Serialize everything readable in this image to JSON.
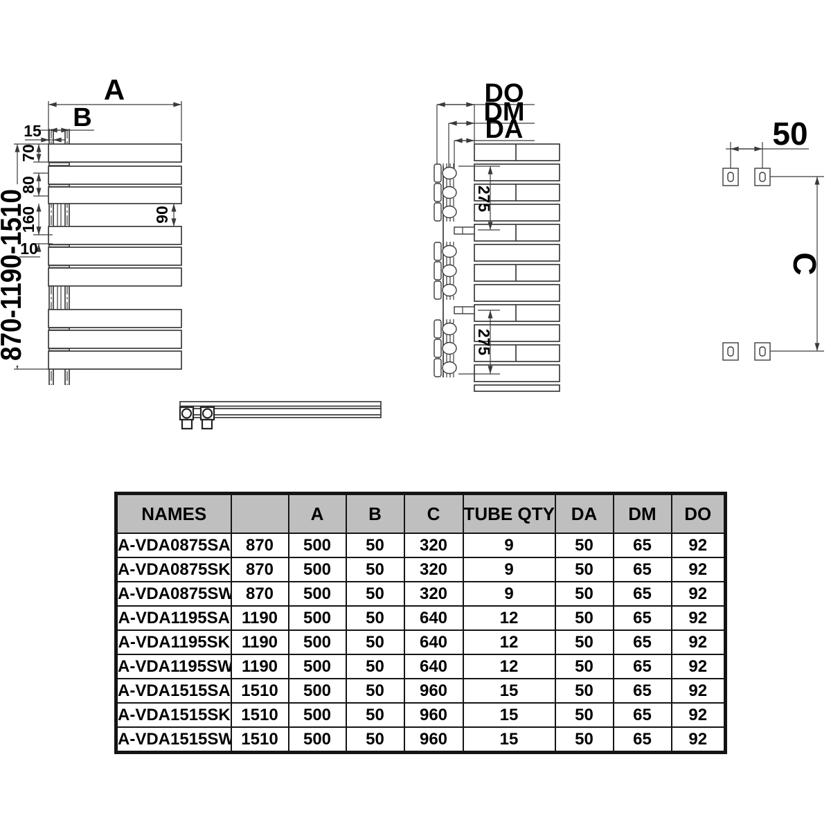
{
  "colors": {
    "background": "#ffffff",
    "line": "#3a3a3a",
    "text": "#000000",
    "table_header_bg": "#bfbfbf",
    "table_border": "#141414"
  },
  "front_view": {
    "label_width": "A",
    "label_offset": "B",
    "dim_rail_offset": "15",
    "dim_tube_height": "70",
    "dim_tube_pitch": "80",
    "dim_group_gap": "160",
    "dim_small_gap": "10",
    "dim_side_gap": "90",
    "dim_height_range": "870-1190-1510"
  },
  "side_view": {
    "label_do": "DO",
    "label_dm": "DM",
    "label_da": "DA",
    "dim_bracket_span_top": "275",
    "dim_bracket_span_bottom": "275"
  },
  "mounting_view": {
    "dim_hole_spacing": "50",
    "label_vertical_spacing": "C"
  },
  "spec_table": {
    "headers": [
      "NAMES",
      "",
      "A",
      "B",
      "C",
      "TUBE QTY",
      "DA",
      "DM",
      "DO"
    ],
    "rows": [
      [
        "A-VDA0875SA",
        "870",
        "500",
        "50",
        "320",
        "9",
        "50",
        "65",
        "92"
      ],
      [
        "A-VDA0875SK",
        "870",
        "500",
        "50",
        "320",
        "9",
        "50",
        "65",
        "92"
      ],
      [
        "A-VDA0875SW",
        "870",
        "500",
        "50",
        "320",
        "9",
        "50",
        "65",
        "92"
      ],
      [
        "A-VDA1195SA",
        "1190",
        "500",
        "50",
        "640",
        "12",
        "50",
        "65",
        "92"
      ],
      [
        "A-VDA1195SK",
        "1190",
        "500",
        "50",
        "640",
        "12",
        "50",
        "65",
        "92"
      ],
      [
        "A-VDA1195SW",
        "1190",
        "500",
        "50",
        "640",
        "12",
        "50",
        "65",
        "92"
      ],
      [
        "A-VDA1515SA",
        "1510",
        "500",
        "50",
        "960",
        "15",
        "50",
        "65",
        "92"
      ],
      [
        "A-VDA1515SK",
        "1510",
        "500",
        "50",
        "960",
        "15",
        "50",
        "65",
        "92"
      ],
      [
        "A-VDA1515SW",
        "1510",
        "500",
        "50",
        "960",
        "15",
        "50",
        "65",
        "92"
      ]
    ]
  }
}
